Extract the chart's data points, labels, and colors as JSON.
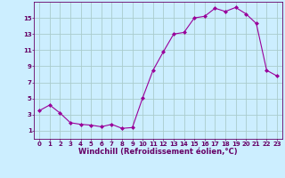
{
  "x": [
    0,
    1,
    2,
    3,
    4,
    5,
    6,
    7,
    8,
    9,
    10,
    11,
    12,
    13,
    14,
    15,
    16,
    17,
    18,
    19,
    20,
    21,
    22,
    23
  ],
  "y": [
    3.5,
    4.2,
    3.2,
    2.0,
    1.8,
    1.7,
    1.5,
    1.8,
    1.3,
    1.4,
    5.1,
    8.5,
    10.8,
    13.0,
    13.2,
    15.0,
    15.2,
    16.2,
    15.8,
    16.3,
    15.5,
    14.3,
    8.5,
    7.8
  ],
  "line_color": "#990099",
  "marker": "D",
  "marker_size": 2.0,
  "bg_color": "#cceeff",
  "grid_color": "#aacccc",
  "xlabel": "Windchill (Refroidissement éolien,°C)",
  "xlabel_color": "#660066",
  "tick_color": "#660066",
  "axis_color": "#660066",
  "ylim": [
    0,
    17
  ],
  "xlim": [
    -0.5,
    23.5
  ],
  "yticks": [
    1,
    3,
    5,
    7,
    9,
    11,
    13,
    15
  ],
  "xticks": [
    0,
    1,
    2,
    3,
    4,
    5,
    6,
    7,
    8,
    9,
    10,
    11,
    12,
    13,
    14,
    15,
    16,
    17,
    18,
    19,
    20,
    21,
    22,
    23
  ],
  "tick_fontsize": 5.0,
  "xlabel_fontsize": 6.0
}
